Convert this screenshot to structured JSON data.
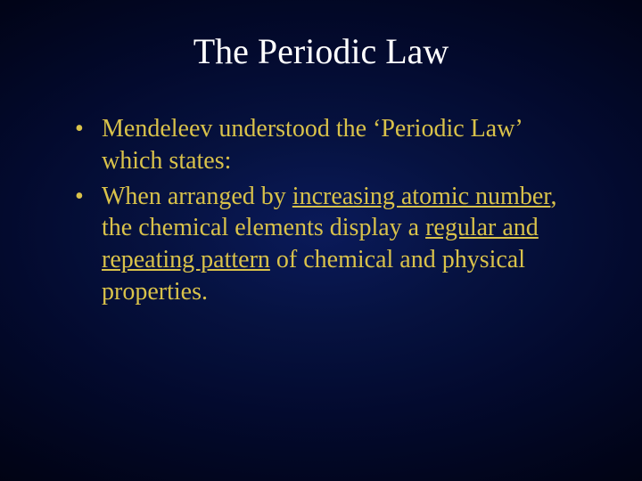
{
  "slide": {
    "title": "The Periodic Law",
    "title_fontsize": 40,
    "title_color": "#ffffff",
    "body_fontsize": 28,
    "body_color": "#d9c24a",
    "body_lineheight": 1.28,
    "bullets": [
      {
        "segments": [
          {
            "text": "Mendeleev understood the ‘Periodic Law’ which states:",
            "underline": false
          }
        ]
      },
      {
        "segments": [
          {
            "text": "When arranged by ",
            "underline": false
          },
          {
            "text": "increasing atomic number",
            "underline": true
          },
          {
            "text": ", the chemical elements display a ",
            "underline": false
          },
          {
            "text": "regular and repeating pattern",
            "underline": true
          },
          {
            "text": " of chemical and physical properties.",
            "underline": false
          }
        ]
      }
    ]
  }
}
